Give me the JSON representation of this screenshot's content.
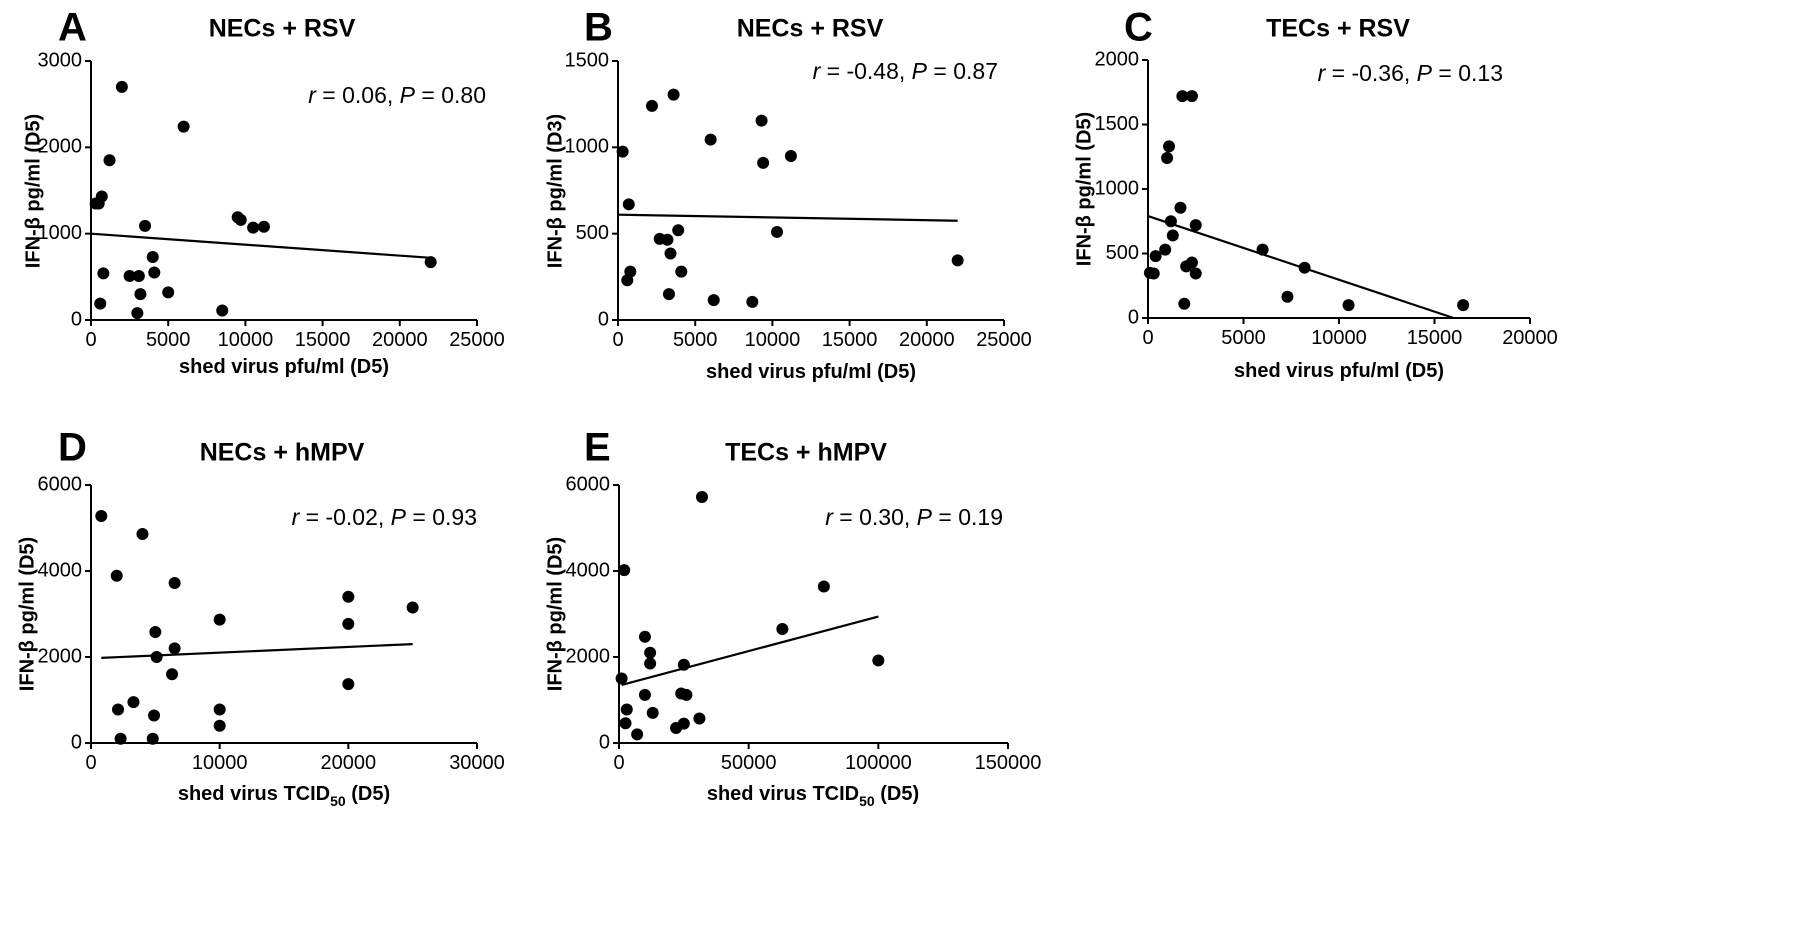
{
  "chart_data": [
    {
      "panel": "A",
      "type": "scatter",
      "title": "NECs + RSV",
      "xlabel": "shed virus pfu/ml (D5)",
      "ylabel": "IFN-β pg/ml (D5)",
      "stat": {
        "r_label": "r",
        "r_value": " = 0.06, ",
        "p_label": "P",
        "p_value": " = 0.80"
      },
      "xlim": [
        0,
        25000
      ],
      "ylim": [
        0,
        3000
      ],
      "xticks": [
        0,
        5000,
        10000,
        15000,
        20000,
        25000
      ],
      "xtick_labels": [
        "0",
        "5000",
        "10000",
        "15000",
        "20000",
        "25000"
      ],
      "yticks": [
        0,
        1000,
        2000,
        3000
      ],
      "ytick_labels": [
        "0",
        "1000",
        "2000",
        "3000"
      ],
      "points": [
        [
          300,
          1350
        ],
        [
          500,
          1350
        ],
        [
          700,
          1430
        ],
        [
          600,
          190
        ],
        [
          800,
          540
        ],
        [
          1200,
          1850
        ],
        [
          2000,
          2700
        ],
        [
          2500,
          510
        ],
        [
          3000,
          80
        ],
        [
          3100,
          510
        ],
        [
          3200,
          300
        ],
        [
          3500,
          1090
        ],
        [
          4000,
          730
        ],
        [
          4100,
          550
        ],
        [
          5000,
          320
        ],
        [
          6000,
          2240
        ],
        [
          8500,
          110
        ],
        [
          9500,
          1190
        ],
        [
          9700,
          1160
        ],
        [
          10500,
          1070
        ],
        [
          11200,
          1080
        ],
        [
          22000,
          670
        ]
      ],
      "trendline": [
        [
          0,
          1000
        ],
        [
          22000,
          720
        ]
      ],
      "grid": false,
      "legend": "none"
    },
    {
      "panel": "B",
      "type": "scatter",
      "title": "NECs + RSV",
      "xlabel": "shed virus pfu/ml (D5)",
      "ylabel": "IFN-β pg/ml (D3)",
      "stat": {
        "r_label": "r",
        "r_value": " = -0.48, ",
        "p_label": "P",
        "p_value": " = 0.87"
      },
      "xlim": [
        0,
        25000
      ],
      "ylim": [
        0,
        1500
      ],
      "xticks": [
        0,
        5000,
        10000,
        15000,
        20000,
        25000
      ],
      "xtick_labels": [
        "0",
        "5000",
        "10000",
        "15000",
        "20000",
        "25000"
      ],
      "yticks": [
        0,
        500,
        1000,
        1500
      ],
      "ytick_labels": [
        "0",
        "500",
        "1000",
        "1500"
      ],
      "points": [
        [
          300,
          975
        ],
        [
          600,
          230
        ],
        [
          700,
          670
        ],
        [
          800,
          280
        ],
        [
          2200,
          1240
        ],
        [
          2700,
          470
        ],
        [
          3200,
          465
        ],
        [
          3300,
          150
        ],
        [
          3400,
          385
        ],
        [
          3600,
          1305
        ],
        [
          3900,
          520
        ],
        [
          4100,
          280
        ],
        [
          6000,
          1045
        ],
        [
          6200,
          115
        ],
        [
          8700,
          105
        ],
        [
          9300,
          1155
        ],
        [
          9400,
          910
        ],
        [
          10300,
          510
        ],
        [
          11200,
          950
        ],
        [
          22000,
          345
        ]
      ],
      "trendline": [
        [
          0,
          610
        ],
        [
          22000,
          575
        ]
      ],
      "grid": false,
      "legend": "none"
    },
    {
      "panel": "C",
      "type": "scatter",
      "title": "TECs + RSV",
      "xlabel": "shed virus pfu/ml (D5)",
      "ylabel": "IFN-β pg/ml (D5)",
      "stat": {
        "r_label": "r",
        "r_value": " = -0.36, ",
        "p_label": "P",
        "p_value": " = 0.13"
      },
      "xlim": [
        0,
        20000
      ],
      "ylim": [
        0,
        2000
      ],
      "xticks": [
        0,
        5000,
        10000,
        15000,
        20000
      ],
      "xtick_labels": [
        "0",
        "5000",
        "10000",
        "15000",
        "20000"
      ],
      "yticks": [
        0,
        500,
        1000,
        1500,
        2000
      ],
      "ytick_labels": [
        "0",
        "500",
        "1000",
        "1500",
        "2000"
      ],
      "points": [
        [
          100,
          350
        ],
        [
          300,
          345
        ],
        [
          400,
          480
        ],
        [
          900,
          530
        ],
        [
          1000,
          1240
        ],
        [
          1100,
          1330
        ],
        [
          1200,
          750
        ],
        [
          1300,
          640
        ],
        [
          1700,
          855
        ],
        [
          1800,
          1720
        ],
        [
          1900,
          110
        ],
        [
          2000,
          400
        ],
        [
          2300,
          1720
        ],
        [
          2300,
          430
        ],
        [
          2500,
          720
        ],
        [
          2500,
          345
        ],
        [
          6000,
          530
        ],
        [
          7300,
          165
        ],
        [
          8200,
          390
        ],
        [
          10500,
          100
        ],
        [
          16500,
          100
        ]
      ],
      "trendline": [
        [
          0,
          790
        ],
        [
          16000,
          0
        ]
      ],
      "grid": false,
      "legend": "none"
    },
    {
      "panel": "D",
      "type": "scatter",
      "title": "NECs + hMPV",
      "xlabel": "shed virus TCID50 (D5)",
      "xlabel_main": "shed virus TCID",
      "xlabel_sub": "50",
      "xlabel_tail": " (D5)",
      "ylabel": "IFN-β pg/ml (D5)",
      "stat": {
        "r_label": "r",
        "r_value": " = -0.02, ",
        "p_label": "P",
        "p_value": " = 0.93"
      },
      "xlim": [
        0,
        30000
      ],
      "ylim": [
        0,
        6000
      ],
      "xticks": [
        0,
        10000,
        20000,
        30000
      ],
      "xtick_labels": [
        "0",
        "10000",
        "20000",
        "30000"
      ],
      "yticks": [
        0,
        2000,
        4000,
        6000
      ],
      "ytick_labels": [
        "0",
        "2000",
        "4000",
        "6000"
      ],
      "points": [
        [
          800,
          5280
        ],
        [
          2000,
          3890
        ],
        [
          2100,
          780
        ],
        [
          2300,
          100
        ],
        [
          3300,
          950
        ],
        [
          4000,
          4860
        ],
        [
          4800,
          100
        ],
        [
          4900,
          640
        ],
        [
          5000,
          2580
        ],
        [
          5100,
          2000
        ],
        [
          6300,
          1600
        ],
        [
          6500,
          3720
        ],
        [
          6500,
          2200
        ],
        [
          10000,
          2870
        ],
        [
          10000,
          780
        ],
        [
          10000,
          400
        ],
        [
          20000,
          3400
        ],
        [
          20000,
          2770
        ],
        [
          20000,
          1370
        ],
        [
          25000,
          3150
        ]
      ],
      "trendline": [
        [
          800,
          1980
        ],
        [
          25000,
          2300
        ]
      ],
      "grid": false,
      "legend": "none"
    },
    {
      "panel": "E",
      "type": "scatter",
      "title": "TECs + hMPV",
      "xlabel": "shed virus TCID50 (D5)",
      "xlabel_main": "shed virus TCID",
      "xlabel_sub": "50",
      "xlabel_tail": " (D5)",
      "ylabel": "IFN-β pg/ml (D5)",
      "stat": {
        "r_label": "r",
        "r_value": " = 0.30, ",
        "p_label": "P",
        "p_value": " = 0.19"
      },
      "xlim": [
        0,
        150000
      ],
      "ylim": [
        0,
        6000
      ],
      "xticks": [
        0,
        50000,
        100000,
        150000
      ],
      "xtick_labels": [
        "0",
        "50000",
        "100000",
        "150000"
      ],
      "yticks": [
        0,
        2000,
        4000,
        6000
      ],
      "ytick_labels": [
        "0",
        "2000",
        "4000",
        "6000"
      ],
      "points": [
        [
          1000,
          1500
        ],
        [
          2000,
          4020
        ],
        [
          2500,
          460
        ],
        [
          3000,
          780
        ],
        [
          7000,
          200
        ],
        [
          10000,
          2470
        ],
        [
          10000,
          1120
        ],
        [
          12000,
          2100
        ],
        [
          12000,
          1850
        ],
        [
          13000,
          700
        ],
        [
          22000,
          350
        ],
        [
          24000,
          1150
        ],
        [
          25000,
          1820
        ],
        [
          25000,
          450
        ],
        [
          26000,
          1120
        ],
        [
          31000,
          570
        ],
        [
          32000,
          5720
        ],
        [
          63000,
          2650
        ],
        [
          79000,
          3640
        ],
        [
          100000,
          1920
        ]
      ],
      "trendline": [
        [
          1000,
          1350
        ],
        [
          100000,
          2940
        ]
      ],
      "grid": false,
      "legend": "none"
    }
  ]
}
